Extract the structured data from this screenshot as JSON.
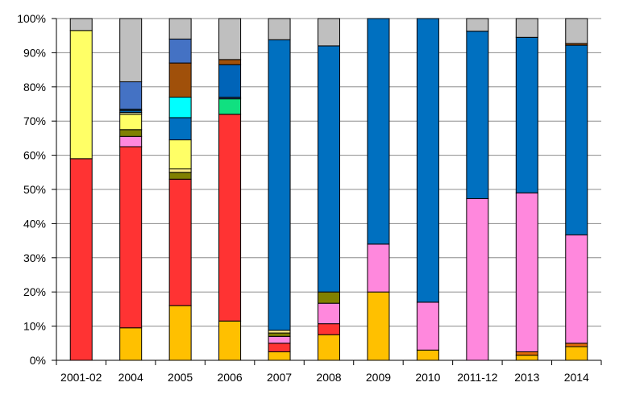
{
  "chart_data": {
    "type": "bar",
    "stacked": true,
    "percent": true,
    "categories": [
      "2001-02",
      "2004",
      "2005",
      "2006",
      "2007",
      "2008",
      "2009",
      "2010",
      "2011-12",
      "2013",
      "2014"
    ],
    "ytick_labels": [
      "0%",
      "10%",
      "20%",
      "30%",
      "40%",
      "50%",
      "60%",
      "70%",
      "80%",
      "90%",
      "100%"
    ],
    "ylim": [
      0,
      100
    ],
    "grid": "horizontal",
    "legend": "none",
    "series": [
      {
        "color": "#FFC000",
        "values": [
          0,
          9.5,
          16,
          11.5,
          2.5,
          7.5,
          20,
          3,
          0,
          1.5,
          4
        ]
      },
      {
        "color": "#E26B0A",
        "values": [
          0,
          0,
          0,
          0,
          0,
          0,
          0,
          0,
          0,
          1,
          1
        ]
      },
      {
        "color": "#FF3333",
        "values": [
          59,
          53,
          37,
          60.5,
          2.5,
          3.2,
          0,
          0,
          0,
          0,
          0
        ]
      },
      {
        "color": "#FF88DD",
        "values": [
          0,
          3,
          0,
          0,
          2,
          6,
          14,
          14,
          47.3,
          46.5,
          31.7
        ]
      },
      {
        "color": "#808000",
        "values": [
          0,
          2,
          2,
          0,
          1,
          3.3,
          0,
          0,
          0,
          0,
          0
        ]
      },
      {
        "color": "#FFEE88",
        "values": [
          0,
          0,
          1,
          0,
          0.8,
          0,
          0,
          0,
          0,
          0,
          0
        ]
      },
      {
        "color": "#FFFF66",
        "values": [
          37.5,
          4.5,
          8.5,
          0,
          0,
          0,
          0,
          0,
          0,
          0,
          0
        ]
      },
      {
        "color": "#E8E8A0",
        "values": [
          0,
          0.5,
          0,
          0,
          0,
          0,
          0,
          0,
          0,
          0,
          0
        ]
      },
      {
        "color": "#0070C0",
        "values": [
          0,
          0.5,
          6.5,
          0,
          85,
          72,
          66,
          83,
          49,
          45.5,
          55.5
        ]
      },
      {
        "color": "#10E080",
        "values": [
          0,
          0,
          0,
          4.5,
          0,
          0,
          0,
          0,
          0,
          0,
          0
        ]
      },
      {
        "color": "#00FFFF",
        "values": [
          0,
          0,
          6,
          0,
          0,
          0,
          0,
          0,
          0,
          0,
          0
        ]
      },
      {
        "color": "#1F4E79",
        "values": [
          0,
          0.5,
          0,
          0.5,
          0,
          0,
          0,
          0,
          0,
          0,
          0
        ]
      },
      {
        "color": "#0064B8",
        "values": [
          0,
          0,
          0,
          9.5,
          0,
          0,
          0,
          0,
          0,
          0,
          0
        ]
      },
      {
        "color": "#A0500A",
        "values": [
          0,
          0,
          10,
          1.5,
          0,
          0,
          0,
          0,
          0,
          0,
          0.5
        ]
      },
      {
        "color": "#4472C4",
        "values": [
          0,
          8,
          7,
          0,
          0,
          0,
          0,
          0,
          0,
          0,
          0
        ]
      },
      {
        "color": "#BFBFBF",
        "values": [
          3.5,
          18.5,
          6,
          12,
          6.2,
          8,
          0,
          0,
          3.7,
          5.5,
          7.3
        ]
      }
    ]
  }
}
